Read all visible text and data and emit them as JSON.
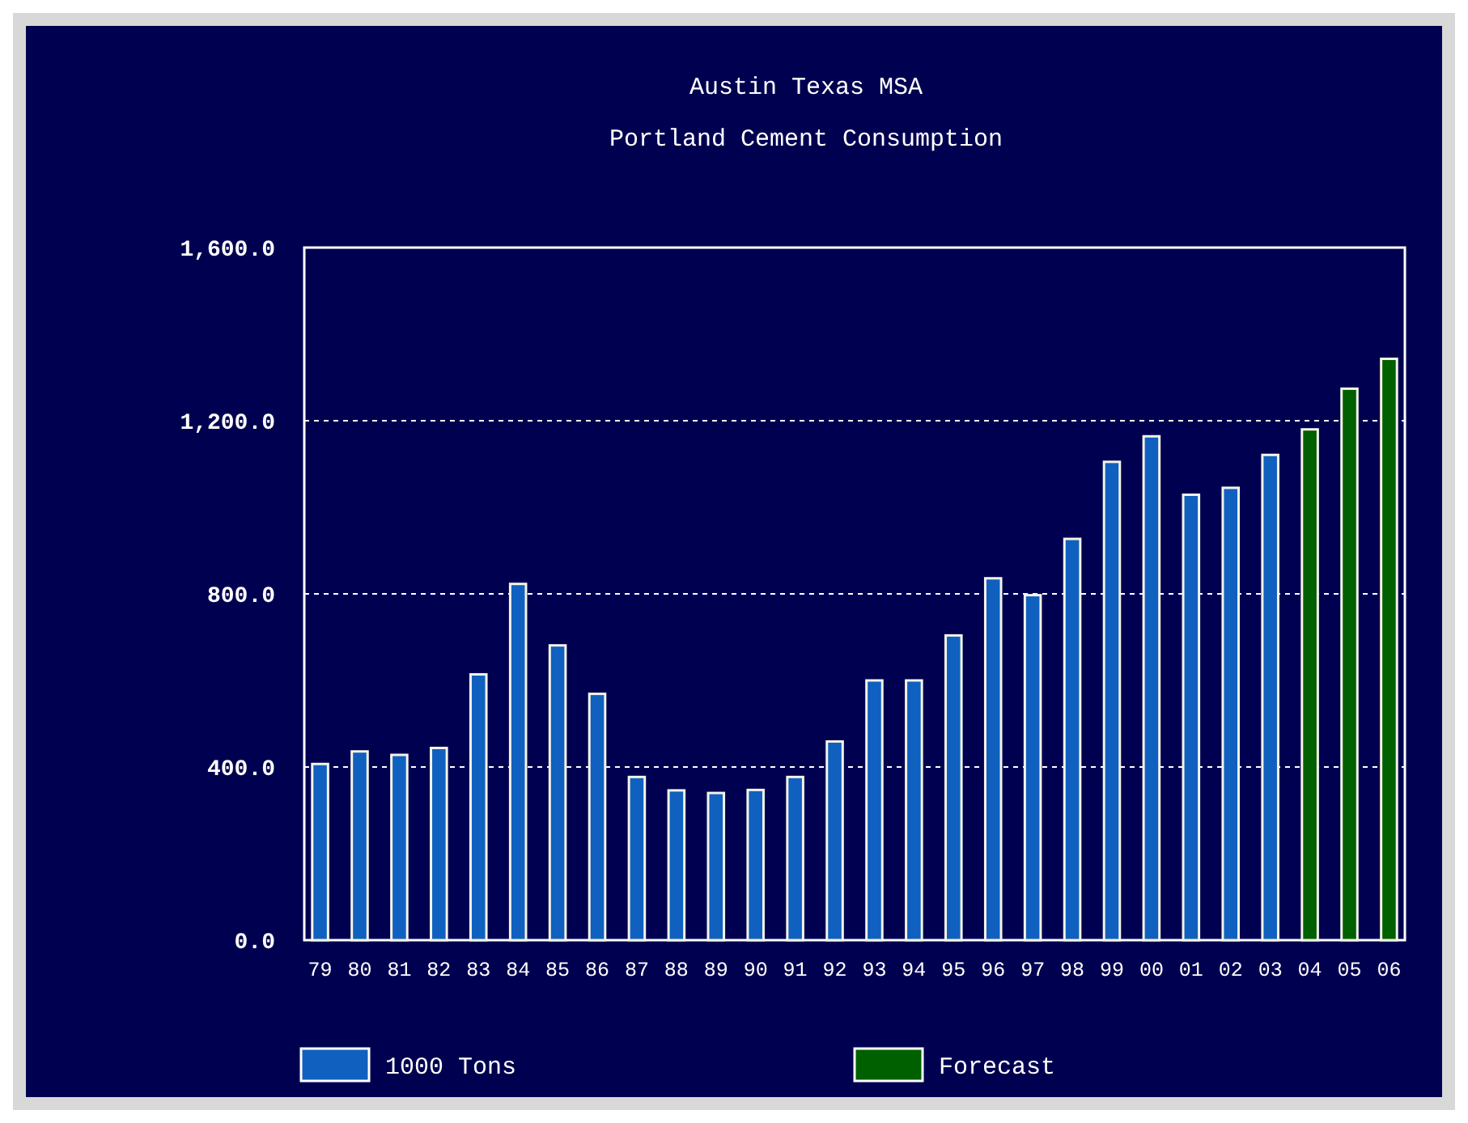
{
  "chart_data": {
    "type": "bar",
    "title": "Austin Texas MSA",
    "subtitle": "Portland Cement Consumption",
    "categories": [
      "79",
      "80",
      "81",
      "82",
      "83",
      "84",
      "85",
      "86",
      "87",
      "88",
      "89",
      "90",
      "91",
      "92",
      "93",
      "94",
      "95",
      "96",
      "97",
      "98",
      "99",
      "00",
      "01",
      "02",
      "03",
      "04",
      "05",
      "06"
    ],
    "series": [
      {
        "name": "1000 Tons",
        "color": "#1060c0",
        "values": [
          407,
          436,
          428,
          444,
          614,
          823,
          681,
          569,
          377,
          346,
          340,
          347,
          377,
          459,
          600,
          600,
          704,
          836,
          797,
          927,
          1105,
          1164,
          1029,
          1045,
          1121,
          null,
          null,
          null
        ]
      },
      {
        "name": "Forecast",
        "color": "#006000",
        "values": [
          null,
          null,
          null,
          null,
          null,
          null,
          null,
          null,
          null,
          null,
          null,
          null,
          null,
          null,
          null,
          null,
          null,
          null,
          null,
          null,
          null,
          null,
          null,
          null,
          null,
          1180,
          1274,
          1343
        ]
      }
    ],
    "stacked": true,
    "ylim": [
      0,
      1600
    ],
    "yticks": [
      {
        "value": 0,
        "label": "0.0"
      },
      {
        "value": 400,
        "label": "400.0"
      },
      {
        "value": 800,
        "label": "800.0"
      },
      {
        "value": 1200,
        "label": "1,200.0"
      },
      {
        "value": 1600,
        "label": "1,600.0"
      }
    ],
    "grid": "y",
    "legend": "bottom"
  }
}
